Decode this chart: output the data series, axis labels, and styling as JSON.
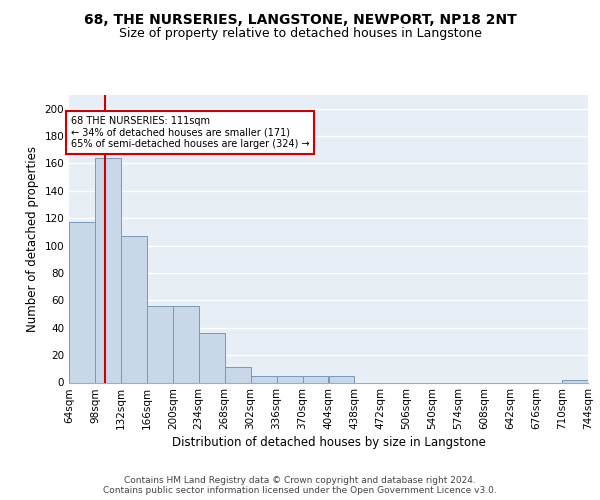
{
  "title": "68, THE NURSERIES, LANGSTONE, NEWPORT, NP18 2NT",
  "subtitle": "Size of property relative to detached houses in Langstone",
  "xlabel": "Distribution of detached houses by size in Langstone",
  "ylabel": "Number of detached properties",
  "bar_color": "#c8d8e8",
  "bar_edge_color": "#7799bb",
  "background_color": "#e8eef5",
  "grid_color": "#ffffff",
  "bin_edges": [
    64,
    98,
    132,
    166,
    200,
    234,
    268,
    302,
    336,
    370,
    404,
    438,
    472,
    506,
    540,
    574,
    608,
    642,
    676,
    710,
    744
  ],
  "bin_labels": [
    "64sqm",
    "98sqm",
    "132sqm",
    "166sqm",
    "200sqm",
    "234sqm",
    "268sqm",
    "302sqm",
    "336sqm",
    "370sqm",
    "404sqm",
    "438sqm",
    "472sqm",
    "506sqm",
    "540sqm",
    "574sqm",
    "608sqm",
    "642sqm",
    "676sqm",
    "710sqm",
    "744sqm"
  ],
  "bar_heights": [
    117,
    164,
    107,
    56,
    56,
    36,
    11,
    5,
    5,
    5,
    5,
    0,
    0,
    0,
    0,
    0,
    0,
    0,
    0,
    2,
    0
  ],
  "property_size": 111,
  "red_line_color": "#cc0000",
  "annotation_text": "68 THE NURSERIES: 111sqm\n← 34% of detached houses are smaller (171)\n65% of semi-detached houses are larger (324) →",
  "annotation_box_color": "#ffffff",
  "annotation_box_edge": "#cc0000",
  "ylim": [
    0,
    210
  ],
  "yticks": [
    0,
    20,
    40,
    60,
    80,
    100,
    120,
    140,
    160,
    180,
    200
  ],
  "footer": "Contains HM Land Registry data © Crown copyright and database right 2024.\nContains public sector information licensed under the Open Government Licence v3.0.",
  "title_fontsize": 10,
  "subtitle_fontsize": 9,
  "label_fontsize": 8.5,
  "tick_fontsize": 7.5,
  "footer_fontsize": 6.5
}
